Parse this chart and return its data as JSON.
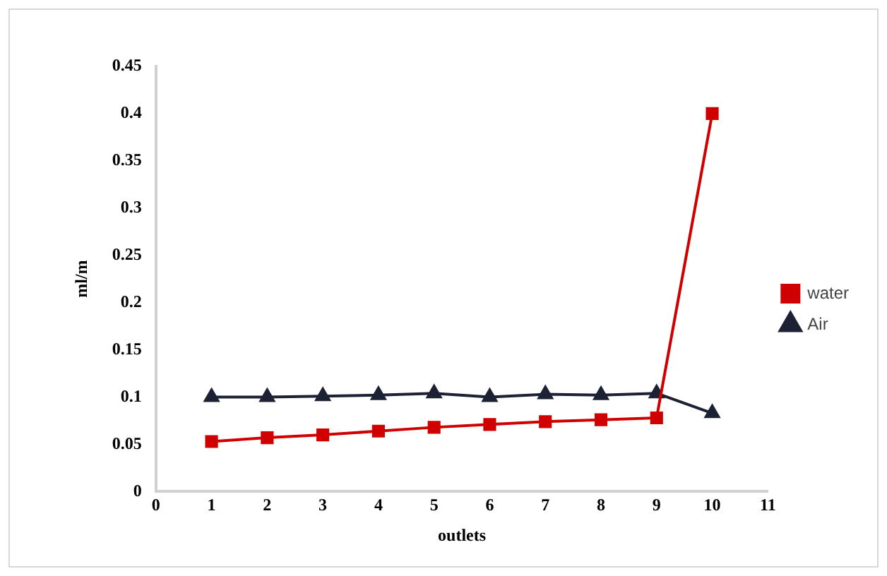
{
  "chart_data": {
    "type": "line",
    "xlabel": "outlets",
    "ylabel": "ml/m",
    "x": [
      1,
      2,
      3,
      4,
      5,
      6,
      7,
      8,
      9,
      10
    ],
    "series": [
      {
        "name": "water",
        "color": "#d00000",
        "marker": "square",
        "values": [
          0.053,
          0.057,
          0.06,
          0.064,
          0.068,
          0.071,
          0.074,
          0.076,
          0.078,
          0.4
        ]
      },
      {
        "name": "Air",
        "color": "#1c2233",
        "marker": "triangle",
        "values": [
          0.1,
          0.1,
          0.101,
          0.102,
          0.104,
          0.1,
          0.103,
          0.102,
          0.104,
          0.083
        ]
      }
    ],
    "xlim": [
      0,
      11
    ],
    "xticks": [
      0,
      1,
      2,
      3,
      4,
      5,
      6,
      7,
      8,
      9,
      10,
      11
    ],
    "ylim": [
      0,
      0.45
    ],
    "yticks": [
      0,
      0.05,
      0.1,
      0.15,
      0.2,
      0.25,
      0.3,
      0.35,
      0.4,
      0.45
    ],
    "grid": false,
    "legend": "right"
  }
}
